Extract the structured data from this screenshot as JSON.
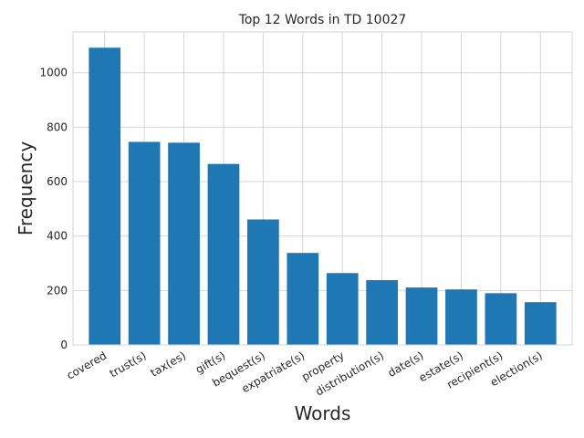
{
  "chart_data": {
    "type": "bar",
    "title": "Top 12 Words in TD 10027",
    "xlabel": "Words",
    "ylabel": "Frequency",
    "categories": [
      "covered",
      "trust(s)",
      "tax(es)",
      "gift(s)",
      "bequest(s)",
      "expatriate(s)",
      "property",
      "distribution(s)",
      "date(s)",
      "estate(s)",
      "recipient(s)",
      "election(s)"
    ],
    "values": [
      1092,
      746,
      743,
      665,
      461,
      338,
      264,
      238,
      211,
      204,
      190,
      157
    ],
    "ylim": [
      0,
      1150
    ],
    "yticks": [
      0,
      200,
      400,
      600,
      800,
      1000
    ],
    "grid": true,
    "bar_color": "#1f77b4",
    "grid_color": "#d5d5d5",
    "text_color": "#262626"
  }
}
